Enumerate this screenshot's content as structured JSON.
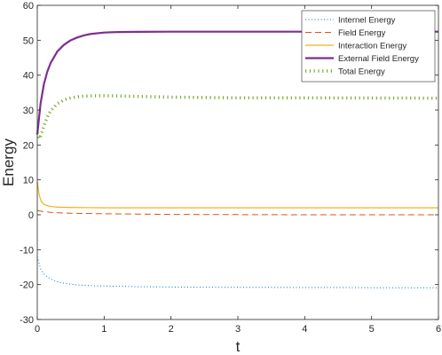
{
  "chart_data": {
    "type": "line",
    "xlabel": "t",
    "ylabel": "Energy",
    "xlim": [
      0,
      6
    ],
    "ylim": [
      -30,
      60
    ],
    "xticks": [
      "0",
      "1",
      "2",
      "3",
      "4",
      "5",
      "6"
    ],
    "yticks": [
      "-30",
      "-20",
      "-10",
      "0",
      "10",
      "20",
      "30",
      "40",
      "50",
      "60"
    ],
    "grid": false,
    "legend_position": "top-right",
    "series": [
      {
        "name": "Internel Energy",
        "color": "#0072BD",
        "style": "dotted",
        "x": [
          0,
          0.05,
          0.1,
          0.15,
          0.2,
          0.3,
          0.4,
          0.5,
          0.6,
          0.8,
          1.0,
          1.5,
          2.0,
          2.5,
          3.0,
          3.5,
          4.0,
          4.5,
          5.0,
          5.5,
          6.0
        ],
        "y": [
          -12,
          -15.5,
          -17,
          -17.8,
          -18.4,
          -19.2,
          -19.6,
          -19.9,
          -20.1,
          -20.3,
          -20.4,
          -20.6,
          -20.7,
          -20.75,
          -20.8,
          -20.8,
          -20.85,
          -20.85,
          -20.9,
          -20.9,
          -20.9
        ]
      },
      {
        "name": "Field Energy",
        "color": "#D95319",
        "style": "dashed",
        "x": [
          0,
          0.1,
          0.2,
          0.4,
          0.6,
          1.0,
          1.5,
          2.0,
          3.0,
          4.0,
          5.0,
          6.0
        ],
        "y": [
          1.2,
          0.9,
          0.7,
          0.5,
          0.4,
          0.3,
          0.2,
          0.1,
          0.05,
          0.0,
          0.0,
          0.0
        ]
      },
      {
        "name": "Interaction Energy",
        "color": "#EDB120",
        "style": "solid",
        "x": [
          0,
          0.03,
          0.06,
          0.1,
          0.15,
          0.2,
          0.3,
          0.5,
          0.8,
          1.0,
          2.0,
          3.0,
          4.0,
          5.0,
          6.0
        ],
        "y": [
          9.5,
          5.5,
          3.8,
          3.0,
          2.6,
          2.4,
          2.2,
          2.1,
          2.05,
          2.0,
          2.0,
          2.0,
          2.0,
          2.0,
          2.0
        ]
      },
      {
        "name": "External Field Energy",
        "color": "#7E2F8E",
        "style": "solid",
        "x": [
          0,
          0.05,
          0.1,
          0.15,
          0.2,
          0.3,
          0.4,
          0.5,
          0.6,
          0.7,
          0.8,
          1.0,
          1.2,
          1.5,
          2.0,
          3.0,
          4.0,
          5.0,
          6.0
        ],
        "y": [
          23,
          32,
          37.5,
          41,
          43.5,
          46.8,
          48.7,
          50,
          50.8,
          51.4,
          51.8,
          52.2,
          52.35,
          52.4,
          52.45,
          52.45,
          52.45,
          52.45,
          52.45
        ]
      },
      {
        "name": "Total Energy",
        "color": "#77AC30",
        "style": "dotted-thick",
        "x": [
          0,
          0.03,
          0.06,
          0.1,
          0.15,
          0.2,
          0.3,
          0.4,
          0.5,
          0.6,
          0.7,
          0.8,
          1.0,
          1.2,
          1.5,
          2.0,
          2.5,
          3.0,
          4.0,
          5.0,
          6.0
        ],
        "y": [
          23.5,
          21.8,
          23.0,
          25.5,
          28.0,
          29.8,
          31.8,
          32.9,
          33.5,
          33.8,
          34.0,
          34.05,
          34.1,
          34.05,
          33.9,
          33.7,
          33.6,
          33.5,
          33.5,
          33.45,
          33.4
        ]
      }
    ]
  }
}
